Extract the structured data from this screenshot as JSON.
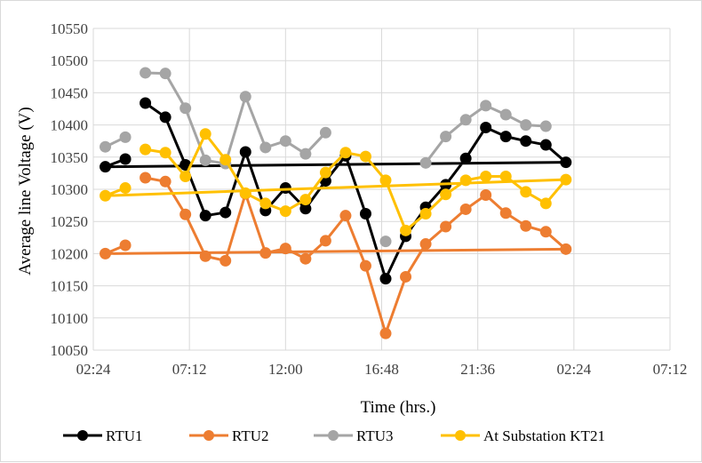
{
  "chart_data": {
    "type": "line",
    "title": "",
    "xlabel": "Time (hrs.)",
    "ylabel": "Average line Voltage (V)",
    "ylim": [
      10050,
      10550
    ],
    "yticks": [
      "10050",
      "10100",
      "10150",
      "10200",
      "10250",
      "10300",
      "10350",
      "10400",
      "10450",
      "10500",
      "10550"
    ],
    "xticks": [
      "02:24",
      "07:12",
      "12:00",
      "16:48",
      "21:36",
      "02:24",
      "07:12"
    ],
    "grid": "vertical and horizontal major gridlines",
    "legend_position": "bottom",
    "x": [
      "05:00",
      "06:00",
      "07:00",
      "08:00",
      "09:00",
      "10:00",
      "11:00",
      "12:00",
      "13:00",
      "14:00",
      "15:00",
      "16:00",
      "17:00",
      "18:00",
      "19:00",
      "20:00",
      "21:00",
      "22:00",
      "23:00",
      "00:00",
      "01:00",
      "02:00",
      "03:00",
      "04:00"
    ],
    "series": [
      {
        "name": "RTU1",
        "color": "#000000",
        "values": [
          10434,
          10412,
          10338,
          10259,
          10264,
          10358,
          10267,
          10302,
          10270,
          10313,
          10352,
          10262,
          10161,
          10227,
          10272,
          10307,
          10348,
          10396,
          10382,
          10375,
          10369,
          10342,
          10335,
          10347
        ]
      },
      {
        "name": "RTU2",
        "color": "#ed7d31",
        "values": [
          10318,
          10312,
          10261,
          10196,
          10189,
          10293,
          10201,
          10208,
          10192,
          10220,
          10259,
          10181,
          10076,
          10164,
          10215,
          10242,
          10269,
          10291,
          10263,
          10243,
          10234,
          10207,
          10200,
          10213
        ]
      },
      {
        "name": "RTU3",
        "color": "#a5a5a5",
        "values": [
          10481,
          10480,
          10426,
          10345,
          10340,
          10444,
          10365,
          10375,
          10355,
          10388,
          null,
          null,
          10219,
          null,
          10341,
          10382,
          10408,
          10430,
          10416,
          10400,
          10398,
          null,
          10366,
          10381
        ]
      },
      {
        "name": "At Substation KT21",
        "color": "#ffc000",
        "values": [
          10362,
          10357,
          10320,
          10386,
          10346,
          10294,
          10278,
          10266,
          10284,
          10326,
          10357,
          10351,
          10314,
          10236,
          10262,
          10292,
          10314,
          10320,
          10320,
          10296,
          10278,
          10315,
          10290,
          10302
        ]
      }
    ]
  }
}
